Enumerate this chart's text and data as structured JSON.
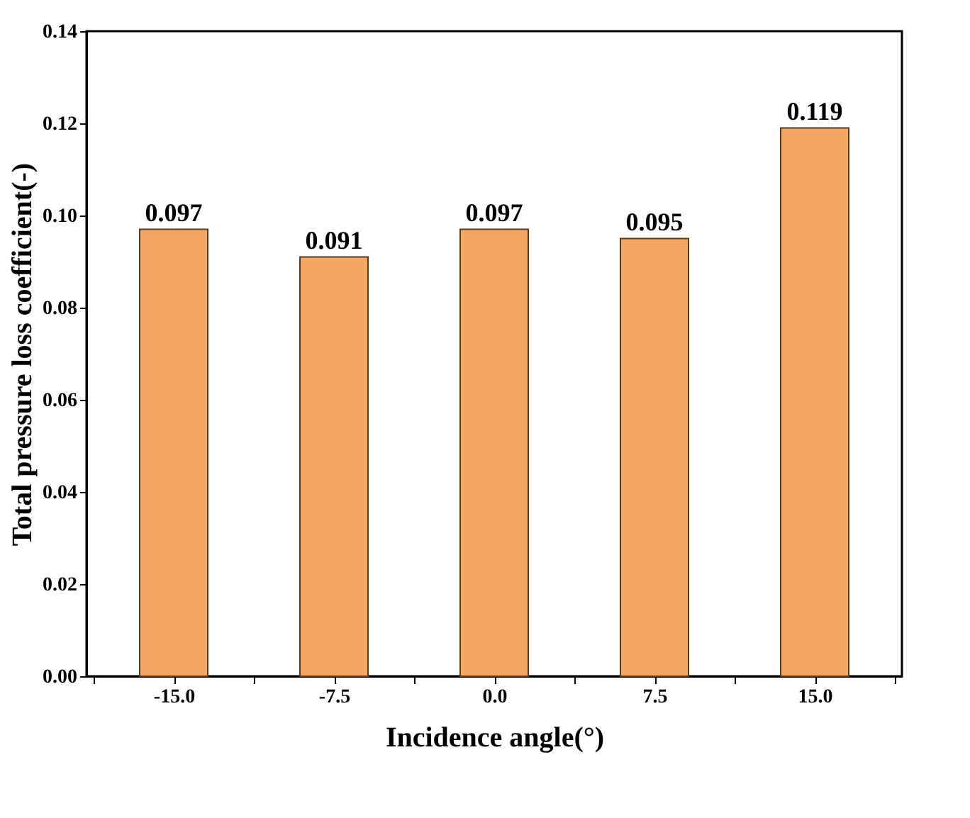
{
  "chart_data": {
    "type": "bar",
    "xlabel": "Incidence angle(°)",
    "ylabel": "Total pressure loss coefficient(-)",
    "categories": [
      "-15.0",
      "-7.5",
      "0.0",
      "7.5",
      "15.0"
    ],
    "series": [
      {
        "color": "#f4a762",
        "values": [
          0.097,
          0.091,
          0.097,
          0.095,
          0.119
        ]
      }
    ],
    "ylim": [
      0,
      0.14
    ],
    "yticks": [
      {
        "value": 0,
        "label": "0.00"
      },
      {
        "value": 0.02,
        "label": "0.02"
      },
      {
        "value": 0.04,
        "label": "0.04"
      },
      {
        "value": 0.06,
        "label": "0.06"
      },
      {
        "value": 0.08,
        "label": "0.08"
      },
      {
        "value": 0.1,
        "label": "0.10"
      },
      {
        "value": 0.12,
        "label": "0.12"
      },
      {
        "value": 0.14,
        "label": "0.14"
      }
    ],
    "data_labels": true,
    "grid": false
  }
}
